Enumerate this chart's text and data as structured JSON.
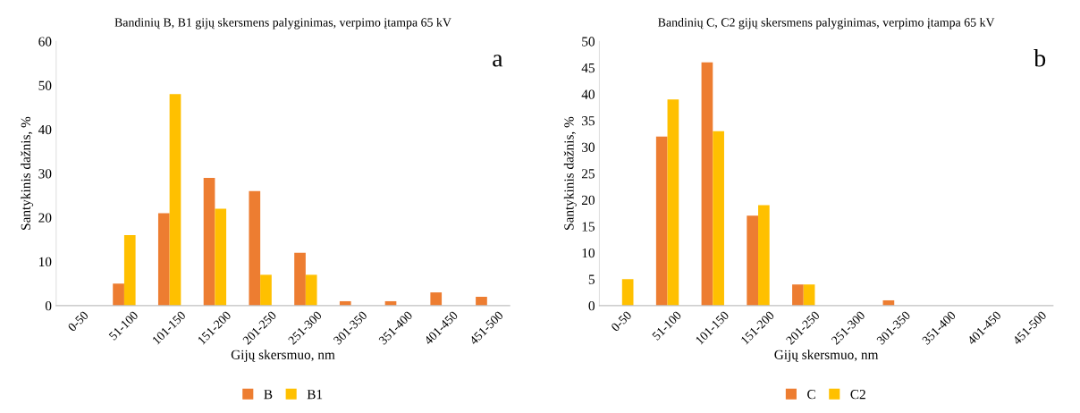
{
  "chart_data": [
    {
      "type": "bar",
      "title": "Bandinių B, B1 gijų skersmens palyginimas, verpimo įtampa 65 kV",
      "xlabel": "Gijų skersmuo, nm",
      "ylabel": "Santykinis dažnis, %",
      "categories": [
        "0-50",
        "51-100",
        "101-150",
        "151-200",
        "201-250",
        "251-300",
        "301-350",
        "351-400",
        "401-450",
        "451-500"
      ],
      "series": [
        {
          "name": "B",
          "color": "#ed7d31",
          "values": [
            0,
            5,
            21,
            29,
            26,
            12,
            1,
            1,
            3,
            2
          ]
        },
        {
          "name": "B1",
          "color": "#ffc000",
          "values": [
            0,
            16,
            48,
            22,
            7,
            7,
            0,
            0,
            0,
            0
          ]
        }
      ],
      "ylim": [
        0,
        60
      ],
      "yticks": [
        0,
        10,
        20,
        30,
        40,
        50,
        60
      ],
      "grid": false,
      "legend": "bottom",
      "annotations": [
        "a"
      ]
    },
    {
      "type": "bar",
      "title": "Bandinių C, C2 gijų skersmens palyginimas, verpimo įtampa 65 kV",
      "xlabel": "Gijų skersmuo, nm",
      "ylabel": "Santykinis dažnis, %",
      "categories": [
        "0-50",
        "51-100",
        "101-150",
        "151-200",
        "201-250",
        "251-300",
        "301-350",
        "351-400",
        "401-450",
        "451-500"
      ],
      "series": [
        {
          "name": "C",
          "color": "#ed7d31",
          "values": [
            0,
            32,
            46,
            17,
            4,
            0,
            1,
            0,
            0,
            0
          ]
        },
        {
          "name": "C2",
          "color": "#ffc000",
          "values": [
            5,
            39,
            33,
            19,
            4,
            0,
            0,
            0,
            0,
            0
          ]
        }
      ],
      "ylim": [
        0,
        50
      ],
      "yticks": [
        0,
        5,
        10,
        15,
        20,
        25,
        30,
        35,
        40,
        45,
        50
      ],
      "grid": false,
      "legend": "bottom",
      "annotations": [
        "b"
      ]
    }
  ]
}
